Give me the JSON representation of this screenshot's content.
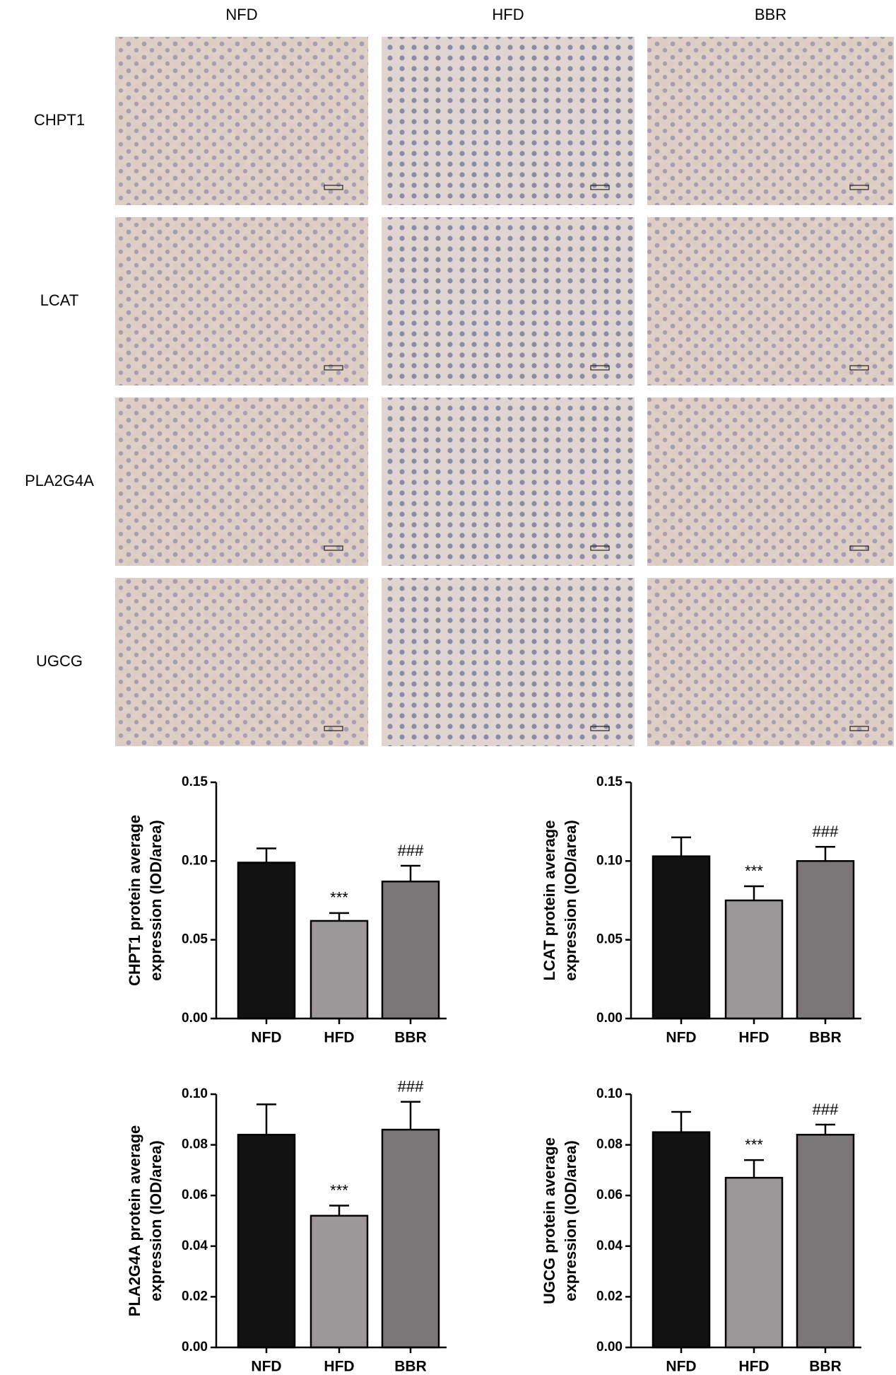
{
  "micrographs": {
    "columns": [
      "NFD",
      "HFD",
      "BBR"
    ],
    "rows": [
      "CHPT1",
      "LCAT",
      "PLA2G4A",
      "UGCG"
    ]
  },
  "chart_data": [
    {
      "type": "bar",
      "ylabel": [
        "CHPT1 protein average",
        "expression (IOD/area)"
      ],
      "categories": [
        "NFD",
        "HFD",
        "BBR"
      ],
      "values": [
        0.099,
        0.062,
        0.087
      ],
      "errors": [
        0.009,
        0.005,
        0.01
      ],
      "colors": [
        "#121212",
        "#9c9798",
        "#7b7677"
      ],
      "annotations": [
        {
          "category": "HFD",
          "text": "***"
        },
        {
          "category": "BBR",
          "text": "###"
        }
      ],
      "ylim": [
        0,
        0.15
      ],
      "yticks": [
        {
          "value": 0,
          "label": "0.00"
        },
        0.05,
        {
          "value": 0.1,
          "label": "0.10"
        },
        0.15
      ]
    },
    {
      "type": "bar",
      "ylabel": [
        "LCAT protein average",
        "expression (IOD/area)"
      ],
      "categories": [
        "NFD",
        "HFD",
        "BBR"
      ],
      "values": [
        0.103,
        0.075,
        0.1
      ],
      "errors": [
        0.012,
        0.009,
        0.009
      ],
      "colors": [
        "#121212",
        "#9c9798",
        "#7b7677"
      ],
      "annotations": [
        {
          "category": "HFD",
          "text": "***"
        },
        {
          "category": "BBR",
          "text": "###"
        }
      ],
      "ylim": [
        0,
        0.15
      ],
      "yticks": [
        {
          "value": 0,
          "label": "0.00"
        },
        0.05,
        {
          "value": 0.1,
          "label": "0.10"
        },
        0.15
      ]
    },
    {
      "type": "bar",
      "ylabel": [
        "PLA2G4A protein average",
        "expression (IOD/area)"
      ],
      "categories": [
        "NFD",
        "HFD",
        "BBR"
      ],
      "values": [
        0.084,
        0.052,
        0.086
      ],
      "errors": [
        0.012,
        0.004,
        0.011
      ],
      "colors": [
        "#121212",
        "#9c9798",
        "#7b7677"
      ],
      "annotations": [
        {
          "category": "HFD",
          "text": "***"
        },
        {
          "category": "BBR",
          "text": "###"
        }
      ],
      "ylim": [
        0,
        0.1
      ],
      "yticks": [
        {
          "value": 0,
          "label": "0.00"
        },
        0.02,
        0.04,
        0.06,
        0.08,
        {
          "value": 0.1,
          "label": "0.10"
        }
      ]
    },
    {
      "type": "bar",
      "ylabel": [
        "UGCG protein average",
        "expression (IOD/area)"
      ],
      "categories": [
        "NFD",
        "HFD",
        "BBR"
      ],
      "values": [
        0.085,
        0.067,
        0.084
      ],
      "errors": [
        0.008,
        0.007,
        0.004
      ],
      "colors": [
        "#121212",
        "#9c9798",
        "#7b7677"
      ],
      "annotations": [
        {
          "category": "HFD",
          "text": "***"
        },
        {
          "category": "BBR",
          "text": "###"
        }
      ],
      "ylim": [
        0,
        0.1
      ],
      "yticks": [
        {
          "value": 0,
          "label": "0.00"
        },
        0.02,
        0.04,
        0.06,
        0.08,
        {
          "value": 0.1,
          "label": "0.10"
        }
      ]
    }
  ]
}
